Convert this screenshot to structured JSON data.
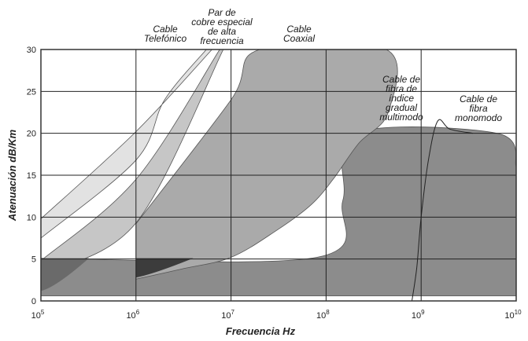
{
  "chart_data": {
    "type": "area",
    "title": "",
    "xlabel": "Frecuencia  Hz",
    "ylabel": "Atenuación  dB/Km",
    "x_scale": "log",
    "xlim": [
      100000,
      10000000000
    ],
    "ylim": [
      0,
      30
    ],
    "x_ticks": [
      {
        "base": "10",
        "exp": "5"
      },
      {
        "base": "10",
        "exp": "6"
      },
      {
        "base": "10",
        "exp": "7"
      },
      {
        "base": "10",
        "exp": "8"
      },
      {
        "base": "10",
        "exp": "9"
      },
      {
        "base": "10",
        "exp": "10"
      }
    ],
    "y_ticks": [
      "0",
      "5",
      "10",
      "15",
      "20",
      "25",
      "30"
    ],
    "grid": true,
    "series": [
      {
        "name": "Cable Telefónico",
        "lines": [
          "Cable",
          "Telefónico"
        ],
        "color": "#e2e2e2"
      },
      {
        "name": "Par de cobre especial de alta frecuencia",
        "lines": [
          "Par de",
          "cobre especial",
          "de alta",
          "frecuencia"
        ],
        "color": "#c6c6c6"
      },
      {
        "name": "Cable Coaxial",
        "lines": [
          "Cable",
          "Coaxial"
        ],
        "color": "#aaaaaa"
      },
      {
        "name": "Cable de fibra de índice gradual multimodo",
        "lines": [
          "Cable de",
          "fibra de",
          "índice",
          "gradual",
          "multimodo"
        ],
        "color": "#8c8c8c"
      },
      {
        "name": "Cable de fibra monomodo",
        "lines": [
          "Cable de",
          "fibra",
          "monomodo"
        ],
        "color": "#8c8c8c"
      }
    ],
    "bands": [
      {
        "upper": [
          [
            100000,
            9.8
          ],
          [
            1000000,
            20.2
          ],
          [
            6300000,
            30
          ]
        ],
        "lower": [
          [
            100000,
            7.5
          ],
          [
            1000000,
            16.8
          ],
          [
            2000000,
            24
          ],
          [
            5500000,
            30
          ]
        ]
      },
      {
        "upper": [
          [
            100000,
            4.8
          ],
          [
            1000000,
            14.5
          ],
          [
            7600000,
            30
          ]
        ],
        "lower": [
          [
            100000,
            3.2
          ],
          [
            1000000,
            9.3
          ],
          [
            8300000,
            30
          ]
        ]
      },
      {
        "upper": [
          [
            1000000,
            9.2
          ],
          [
            10000000,
            24
          ],
          [
            20000000,
            30
          ],
          [
            430000000,
            30
          ],
          [
            450000000,
            22.5
          ],
          [
            220000000,
            18.8
          ],
          [
            120000000,
            14.6
          ],
          [
            70000000,
            11.5
          ],
          [
            30000000,
            8.4
          ],
          [
            10000000,
            5.2
          ],
          [
            3000000,
            3.8
          ],
          [
            1000000,
            2.6
          ]
        ],
        "lower": []
      },
      {
        "upper": [
          [
            100000,
            5.1
          ],
          [
            80000000,
            5.2
          ],
          [
            150000000,
            12
          ],
          [
            200000000,
            20
          ],
          [
            6300000000,
            20
          ],
          [
            10000000000,
            16
          ]
        ],
        "lower": [
          [
            100000,
            0.6
          ],
          [
            10000000000,
            0.6
          ]
        ]
      }
    ],
    "dark_patches": [
      {
        "points": [
          [
            100000,
            5.1
          ],
          [
            320000,
            5.1
          ],
          [
            100000,
            1.2
          ]
        ]
      },
      {
        "points": [
          [
            1000000,
            5.1
          ],
          [
            4000000,
            5.1
          ],
          [
            1000000,
            2.8
          ]
        ]
      }
    ],
    "monomodo_curve": [
      [
        800000000,
        0
      ],
      [
        900000000,
        4
      ],
      [
        1000000000,
        10
      ],
      [
        1200000000,
        17
      ],
      [
        1500000000,
        21.5
      ],
      [
        2000000000,
        20.5
      ],
      [
        3500000000,
        20
      ]
    ]
  }
}
